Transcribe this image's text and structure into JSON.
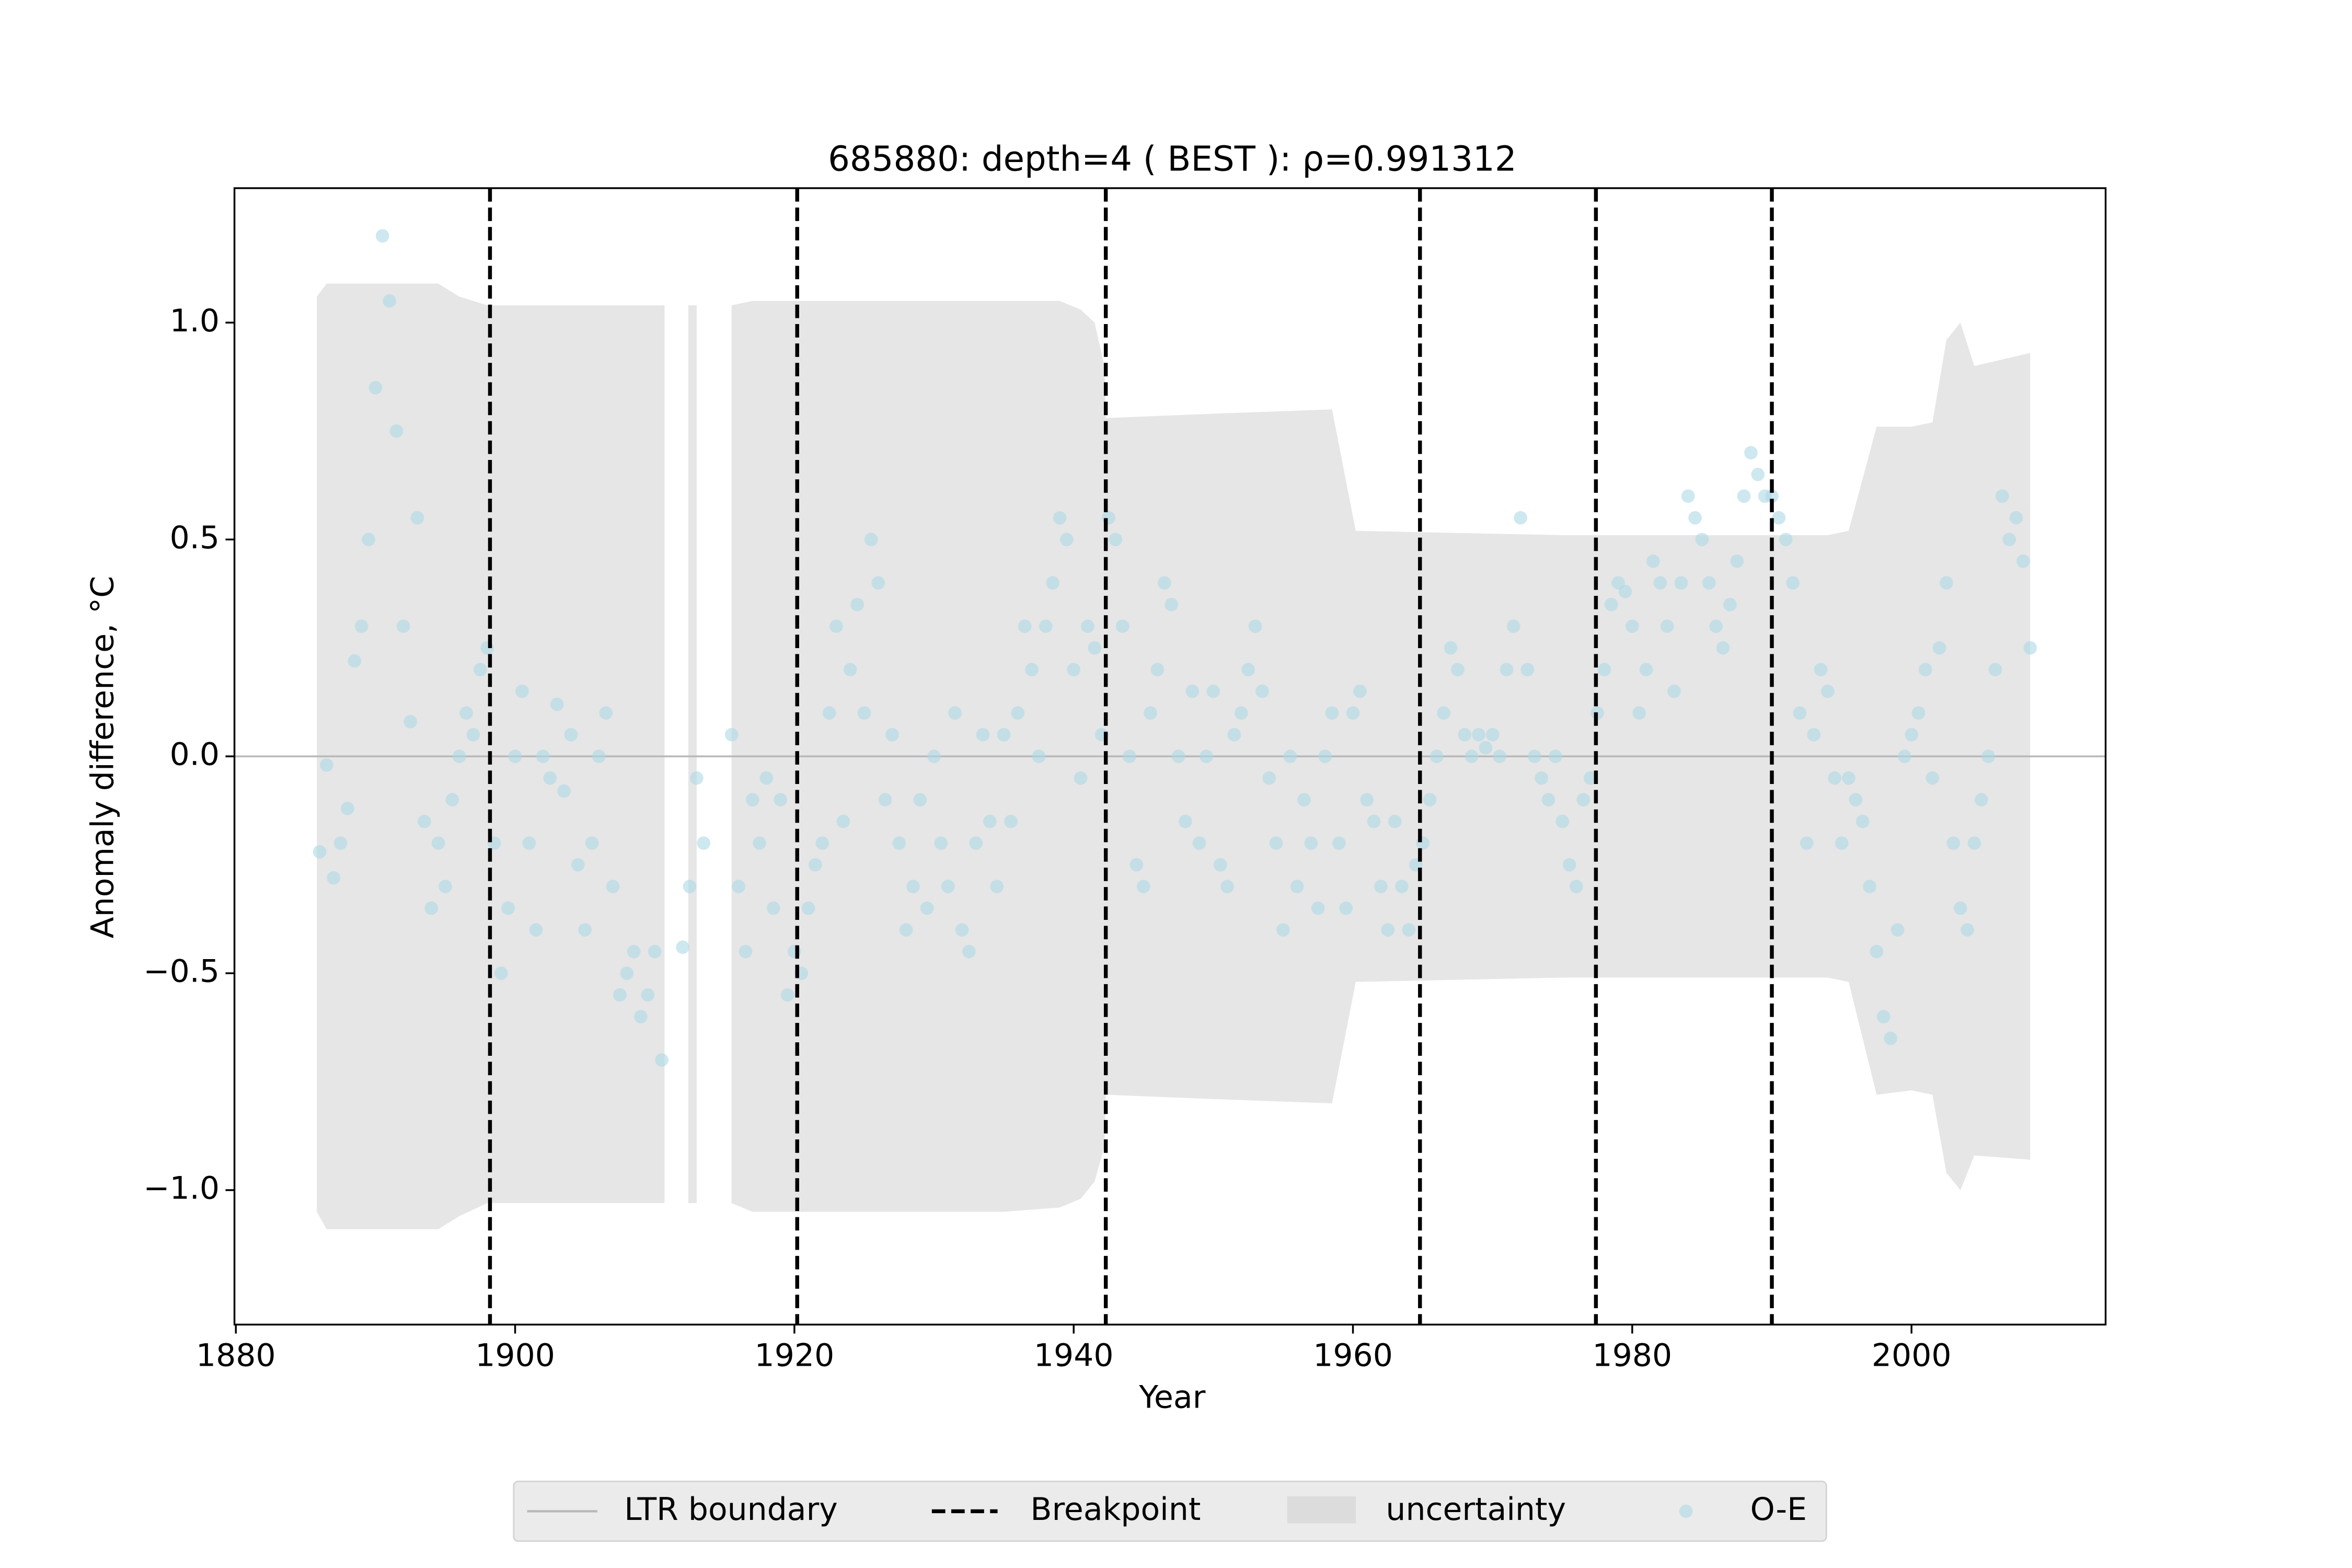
{
  "chart_data": {
    "type": "scatter",
    "title": "685880: depth=4 ( BEST ): ρ=0.991312",
    "xlabel": "Year",
    "ylabel": "Anomaly difference, °C",
    "xlim": [
      1879.9,
      2013.9
    ],
    "ylim": [
      -1.31,
      1.31
    ],
    "xticks": [
      1880,
      1900,
      1920,
      1940,
      1960,
      1980,
      2000
    ],
    "yticks": [
      {
        "value": -1,
        "label": "−1.0"
      },
      {
        "value": -0.5,
        "label": "−0.5"
      },
      {
        "value": 0,
        "label": "0.0"
      },
      0.5,
      {
        "value": 1,
        "label": "1.0"
      }
    ],
    "legend_position": "lower center",
    "ltr_boundary": {
      "name": "LTR boundary",
      "value": 0,
      "color": "#b8b8b8"
    },
    "breakpoints": {
      "name": "Breakpoint",
      "color": "#000000",
      "x": [
        1898.2,
        1920.2,
        1942.3,
        1964.8,
        1977.4,
        1990.0
      ]
    },
    "uncertainty": {
      "name": "uncertainty",
      "color": "#e6e6e6",
      "x": [
        1885.8,
        1886.5,
        1888,
        1894.5,
        1896,
        1898,
        1910.7,
        1911.5,
        1912.4,
        1913.0,
        1914,
        1915.5,
        1917,
        1925,
        1935,
        1939,
        1940.5,
        1941.5,
        1942.2,
        1942.3,
        1950,
        1958.5,
        1960.2,
        1975,
        1994,
        1995.5,
        1997.5,
        2000,
        2001.5,
        2002.5,
        2003.5,
        2004.5,
        2008.5
      ],
      "upper": [
        1.06,
        1.09,
        1.09,
        1.09,
        1.06,
        1.04,
        1.04,
        null,
        1.04,
        1.04,
        null,
        1.04,
        1.05,
        1.05,
        1.05,
        1.05,
        1.03,
        1.0,
        0.9,
        0.78,
        0.79,
        0.8,
        0.52,
        0.51,
        0.51,
        0.52,
        0.76,
        0.76,
        0.77,
        0.96,
        1.0,
        0.9,
        0.93
      ],
      "lower": [
        -1.05,
        -1.09,
        -1.09,
        -1.09,
        -1.06,
        -1.03,
        -1.03,
        null,
        -1.03,
        -1.03,
        null,
        -1.03,
        -1.05,
        -1.05,
        -1.05,
        -1.04,
        -1.02,
        -0.98,
        -0.9,
        -0.78,
        -0.79,
        -0.8,
        -0.52,
        -0.51,
        -0.51,
        -0.52,
        -0.78,
        -0.77,
        -0.78,
        -0.96,
        -1.0,
        -0.92,
        -0.93
      ]
    },
    "series": [
      {
        "name": "O-E",
        "color": "#add8e6",
        "x": [
          1886.0,
          1886.5,
          1887.0,
          1887.5,
          1888.0,
          1888.5,
          1889.0,
          1889.5,
          1890.0,
          1890.5,
          1891.0,
          1891.5,
          1892.0,
          1892.5,
          1893.0,
          1893.5,
          1894.0,
          1894.5,
          1895.0,
          1895.5,
          1896.0,
          1896.5,
          1897.0,
          1897.5,
          1898.0,
          1898.5,
          1899.0,
          1899.5,
          1900.0,
          1900.5,
          1901.0,
          1901.5,
          1902.0,
          1902.5,
          1903.0,
          1903.5,
          1904.0,
          1904.5,
          1905.0,
          1905.5,
          1906.0,
          1906.5,
          1907.0,
          1907.5,
          1908.0,
          1908.5,
          1909.0,
          1909.5,
          1910.0,
          1910.5,
          1912.0,
          1912.5,
          1913.0,
          1913.5,
          1915.5,
          1916.0,
          1916.5,
          1917.0,
          1917.5,
          1918.0,
          1918.5,
          1919.0,
          1919.5,
          1920.0,
          1920.5,
          1921.0,
          1921.5,
          1922.0,
          1922.5,
          1923.0,
          1923.5,
          1924.0,
          1924.5,
          1925.0,
          1925.5,
          1926.0,
          1926.5,
          1927.0,
          1927.5,
          1928.0,
          1928.5,
          1929.0,
          1929.5,
          1930.0,
          1930.5,
          1931.0,
          1931.5,
          1932.0,
          1932.5,
          1933.0,
          1933.5,
          1934.0,
          1934.5,
          1935.0,
          1935.5,
          1936.0,
          1936.5,
          1937.0,
          1937.5,
          1938.0,
          1938.5,
          1939.0,
          1939.5,
          1940.0,
          1940.5,
          1941.0,
          1941.5,
          1942.0,
          1942.5,
          1943.0,
          1943.5,
          1944.0,
          1944.5,
          1945.0,
          1945.5,
          1946.0,
          1946.5,
          1947.0,
          1947.5,
          1948.0,
          1948.5,
          1949.0,
          1949.5,
          1950.0,
          1950.5,
          1951.0,
          1951.5,
          1952.0,
          1952.5,
          1953.0,
          1953.5,
          1954.0,
          1954.5,
          1955.0,
          1955.5,
          1956.0,
          1956.5,
          1957.0,
          1957.5,
          1958.0,
          1958.5,
          1959.0,
          1959.5,
          1960.0,
          1960.5,
          1961.0,
          1961.5,
          1962.0,
          1962.5,
          1963.0,
          1963.5,
          1964.0,
          1964.5,
          1965.0,
          1965.5,
          1966.0,
          1966.5,
          1967.0,
          1967.5,
          1968.0,
          1968.5,
          1969.0,
          1969.5,
          1970.0,
          1970.5,
          1971.0,
          1971.5,
          1972.0,
          1972.5,
          1973.0,
          1973.5,
          1974.0,
          1974.5,
          1975.0,
          1975.5,
          1976.0,
          1976.5,
          1977.0,
          1977.5,
          1978.0,
          1978.5,
          1979.0,
          1979.5,
          1980.0,
          1980.5,
          1981.0,
          1981.5,
          1982.0,
          1982.5,
          1983.0,
          1983.5,
          1984.0,
          1984.5,
          1985.0,
          1985.5,
          1986.0,
          1986.5,
          1987.0,
          1987.5,
          1988.0,
          1988.5,
          1989.0,
          1989.5,
          1990.0,
          1990.5,
          1991.0,
          1991.5,
          1992.0,
          1992.5,
          1993.0,
          1993.5,
          1994.0,
          1994.5,
          1995.0,
          1995.5,
          1996.0,
          1996.5,
          1997.0,
          1997.5,
          1998.0,
          1998.5,
          1999.0,
          1999.5,
          2000.0,
          2000.5,
          2001.0,
          2001.5,
          2002.0,
          2002.5,
          2003.0,
          2003.5,
          2004.0,
          2004.5,
          2005.0,
          2005.5,
          2006.0,
          2006.5,
          2007.0,
          2007.5,
          2008.0,
          2008.5
        ],
        "values": [
          -0.22,
          -0.02,
          -0.28,
          -0.2,
          -0.12,
          0.22,
          0.3,
          0.5,
          0.85,
          1.2,
          1.05,
          0.75,
          0.3,
          0.08,
          0.55,
          -0.15,
          -0.35,
          -0.2,
          -0.3,
          -0.1,
          0.0,
          0.1,
          0.05,
          0.2,
          0.25,
          -0.2,
          -0.5,
          -0.35,
          0.0,
          0.15,
          -0.2,
          -0.4,
          0.0,
          -0.05,
          0.12,
          -0.08,
          0.05,
          -0.25,
          -0.4,
          -0.2,
          0.0,
          0.1,
          -0.3,
          -0.55,
          -0.5,
          -0.45,
          -0.6,
          -0.55,
          -0.45,
          -0.7,
          -0.44,
          -0.3,
          -0.05,
          -0.2,
          0.05,
          -0.3,
          -0.45,
          -0.1,
          -0.2,
          -0.05,
          -0.35,
          -0.1,
          -0.55,
          -0.45,
          -0.5,
          -0.35,
          -0.25,
          -0.2,
          0.1,
          0.3,
          -0.15,
          0.2,
          0.35,
          0.1,
          0.5,
          0.4,
          -0.1,
          0.05,
          -0.2,
          -0.4,
          -0.3,
          -0.1,
          -0.35,
          0.0,
          -0.2,
          -0.3,
          0.1,
          -0.4,
          -0.45,
          -0.2,
          0.05,
          -0.15,
          -0.3,
          0.05,
          -0.15,
          0.1,
          0.3,
          0.2,
          0.0,
          0.3,
          0.4,
          0.55,
          0.5,
          0.2,
          -0.05,
          0.3,
          0.25,
          0.05,
          0.55,
          0.5,
          0.3,
          0.0,
          -0.25,
          -0.3,
          0.1,
          0.2,
          0.4,
          0.35,
          0.0,
          -0.15,
          0.15,
          -0.2,
          0.0,
          0.15,
          -0.25,
          -0.3,
          0.05,
          0.1,
          0.2,
          0.3,
          0.15,
          -0.05,
          -0.2,
          -0.4,
          0.0,
          -0.3,
          -0.1,
          -0.2,
          -0.35,
          0.0,
          0.1,
          -0.2,
          -0.35,
          0.1,
          0.15,
          -0.1,
          -0.15,
          -0.3,
          -0.4,
          -0.15,
          -0.3,
          -0.4,
          -0.25,
          -0.2,
          -0.1,
          0.0,
          0.1,
          0.25,
          0.2,
          0.05,
          0.0,
          0.05,
          0.02,
          0.05,
          0.0,
          0.2,
          0.3,
          0.55,
          0.2,
          0.0,
          -0.05,
          -0.1,
          0.0,
          -0.15,
          -0.25,
          -0.3,
          -0.1,
          -0.05,
          0.1,
          0.2,
          0.35,
          0.4,
          0.38,
          0.3,
          0.1,
          0.2,
          0.45,
          0.4,
          0.3,
          0.15,
          0.4,
          0.6,
          0.55,
          0.5,
          0.4,
          0.3,
          0.25,
          0.35,
          0.45,
          0.6,
          0.7,
          0.65,
          0.6,
          0.6,
          0.55,
          0.5,
          0.4,
          0.1,
          -0.2,
          0.05,
          0.2,
          0.15,
          -0.05,
          -0.2,
          -0.05,
          -0.1,
          -0.15,
          -0.3,
          -0.45,
          -0.6,
          -0.65,
          -0.4,
          0.0,
          0.05,
          0.1,
          0.2,
          -0.05,
          0.25,
          0.4,
          -0.2,
          -0.35,
          -0.4,
          -0.2,
          -0.1,
          0.0,
          0.2,
          0.6,
          0.5,
          0.55,
          0.45,
          0.25
        ]
      }
    ]
  }
}
